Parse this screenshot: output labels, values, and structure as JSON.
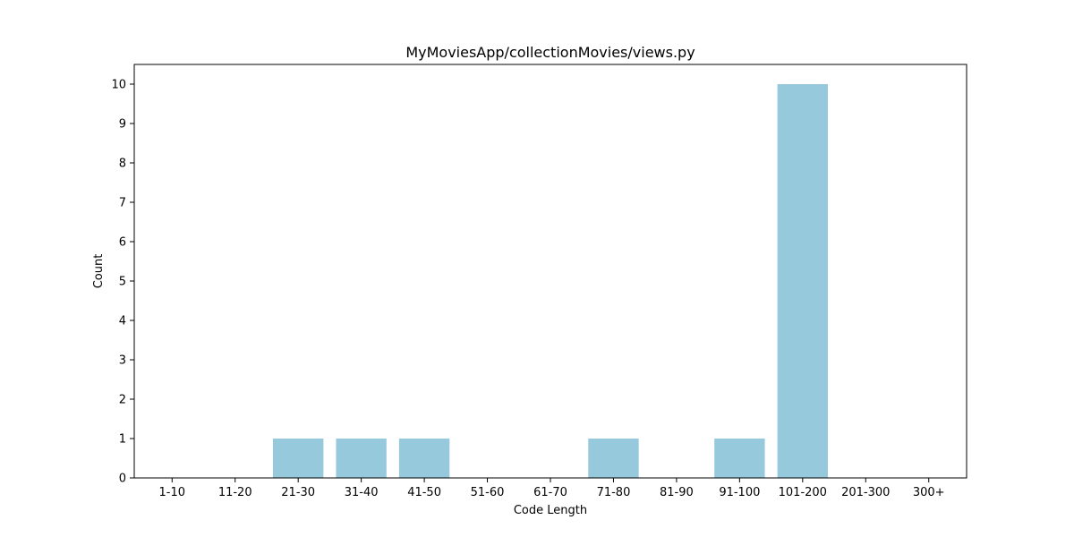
{
  "chart_data": {
    "type": "bar",
    "title": "MyMoviesApp/collectionMovies/views.py",
    "xlabel": "Code Length",
    "ylabel": "Count",
    "categories": [
      "1-10",
      "11-20",
      "21-30",
      "31-40",
      "41-50",
      "51-60",
      "61-70",
      "71-80",
      "81-90",
      "91-100",
      "101-200",
      "201-300",
      "300+"
    ],
    "values": [
      0,
      0,
      1,
      1,
      1,
      0,
      0,
      1,
      0,
      1,
      10,
      0,
      0
    ],
    "ylim": [
      0,
      10.5
    ],
    "yticks": [
      0,
      1,
      2,
      3,
      4,
      5,
      6,
      7,
      8,
      9,
      10
    ],
    "bar_color": "#96c9dc",
    "grid": false,
    "legend": "none"
  }
}
